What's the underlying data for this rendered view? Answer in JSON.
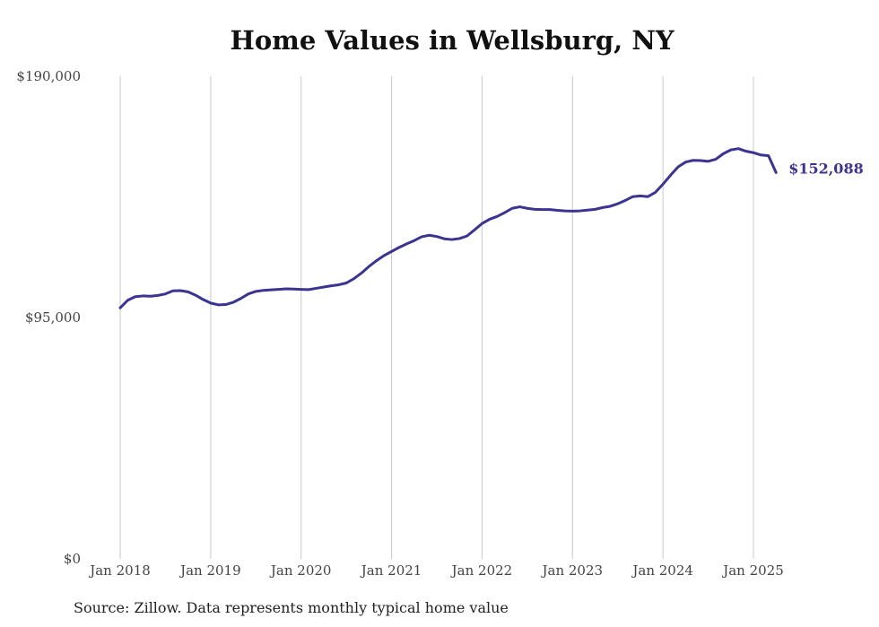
{
  "chart_data": {
    "type": "line",
    "title": "Home Values in Wellsburg, NY",
    "xlabel": "",
    "ylabel": "",
    "source": "Source: Zillow. Data represents monthly typical home value",
    "ylim": [
      0,
      190000
    ],
    "y_ticks": [
      {
        "value": 0,
        "label": "$0"
      },
      {
        "value": 95000,
        "label": "$95,000"
      },
      {
        "value": 190000,
        "label": "$190,000"
      }
    ],
    "x_ticks": [
      {
        "value": "2018-01",
        "label": "Jan 2018"
      },
      {
        "value": "2019-01",
        "label": "Jan 2019"
      },
      {
        "value": "2020-01",
        "label": "Jan 2020"
      },
      {
        "value": "2021-01",
        "label": "Jan 2021"
      },
      {
        "value": "2022-01",
        "label": "Jan 2022"
      },
      {
        "value": "2023-01",
        "label": "Jan 2023"
      },
      {
        "value": "2024-01",
        "label": "Jan 2024"
      },
      {
        "value": "2025-01",
        "label": "Jan 2025"
      }
    ],
    "grid": {
      "vertical": true,
      "horizontal": false
    },
    "line_color": "#3b3491",
    "end_label": "$152,088",
    "series": [
      {
        "x": [
          "2018-01",
          "2018-02",
          "2018-03",
          "2018-04",
          "2018-05",
          "2018-06",
          "2018-07",
          "2018-08",
          "2018-09",
          "2018-10",
          "2018-11",
          "2018-12",
          "2019-01",
          "2019-02",
          "2019-03",
          "2019-04",
          "2019-05",
          "2019-06",
          "2019-07",
          "2019-08",
          "2019-09",
          "2019-10",
          "2019-11",
          "2019-12",
          "2020-01",
          "2020-02",
          "2020-03",
          "2020-04",
          "2020-05",
          "2020-06",
          "2020-07",
          "2020-08",
          "2020-09",
          "2020-10",
          "2020-11",
          "2020-12",
          "2021-01",
          "2021-02",
          "2021-03",
          "2021-04",
          "2021-05",
          "2021-06",
          "2021-07",
          "2021-08",
          "2021-09",
          "2021-10",
          "2021-11",
          "2021-12",
          "2022-01",
          "2022-02",
          "2022-03",
          "2022-04",
          "2022-05",
          "2022-06",
          "2022-07",
          "2022-08",
          "2022-09",
          "2022-10",
          "2022-11",
          "2022-12",
          "2023-01",
          "2023-02",
          "2023-03",
          "2023-04",
          "2023-05",
          "2023-06",
          "2023-07",
          "2023-08",
          "2023-09",
          "2023-10",
          "2023-11",
          "2023-12",
          "2024-01",
          "2024-02",
          "2024-03",
          "2024-04",
          "2024-05",
          "2024-06",
          "2024-07",
          "2024-08",
          "2024-09",
          "2024-10",
          "2024-11",
          "2024-12",
          "2025-01",
          "2025-02",
          "2025-03",
          "2025-04"
        ],
        "values": [
          98800,
          101800,
          103200,
          103500,
          103400,
          103700,
          104300,
          105500,
          105600,
          105100,
          103800,
          102100,
          100700,
          100000,
          100100,
          101000,
          102500,
          104300,
          105300,
          105700,
          105900,
          106100,
          106300,
          106200,
          106100,
          106000,
          106500,
          107000,
          107500,
          107900,
          108600,
          110300,
          112500,
          115100,
          117400,
          119400,
          121000,
          122600,
          124000,
          125300,
          126800,
          127400,
          126900,
          126000,
          125700,
          126100,
          127100,
          129500,
          132000,
          133700,
          134800,
          136300,
          138000,
          138600,
          138000,
          137600,
          137500,
          137500,
          137200,
          137000,
          136900,
          137000,
          137300,
          137600,
          138300,
          138800,
          139800,
          141100,
          142600,
          142900,
          142600,
          144300,
          147500,
          151000,
          154300,
          156200,
          156900,
          156800,
          156500,
          157300,
          159500,
          161000,
          161500,
          160500,
          159900,
          159000,
          158700,
          152088
        ]
      }
    ]
  }
}
